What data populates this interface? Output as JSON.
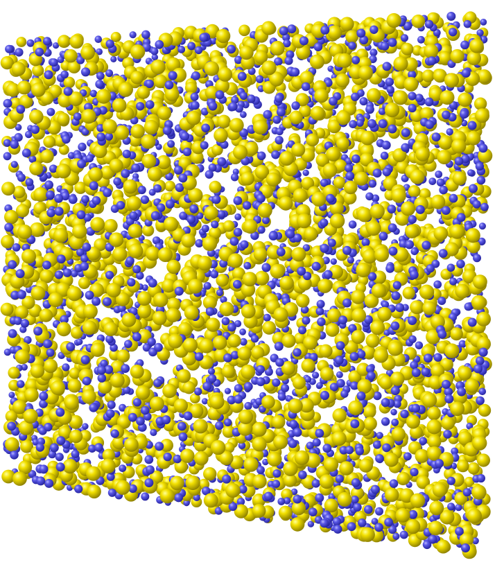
{
  "scene": {
    "kind": "molecular-dynamics-render",
    "species": [
      {
        "name": "yellow-atom",
        "color": "#f2e000",
        "highlight": "#ffff9a",
        "shade": "#8a7d00",
        "relative_size": 1.0
      },
      {
        "name": "blue-atom",
        "color": "#5a58e6",
        "highlight": "#b8b6ff",
        "shade": "#23219a",
        "relative_size": 0.62
      }
    ],
    "background": "#ffffff"
  }
}
